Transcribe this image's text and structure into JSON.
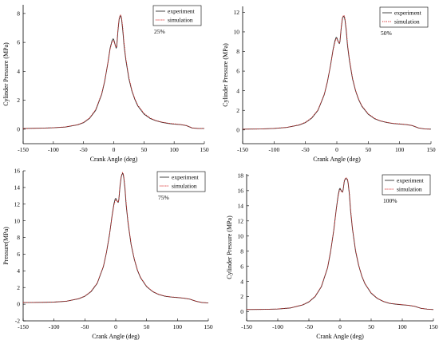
{
  "chart_data": [
    {
      "type": "line",
      "xlabel": "Crank Angle (deg)",
      "ylabel": "Cylinder Pressure (MPa)",
      "annotation": "25%",
      "xlim": [
        -150,
        150
      ],
      "ylim": [
        -1,
        8.6
      ],
      "xticks": [
        -150,
        -100,
        -50,
        0,
        50,
        100,
        150
      ],
      "yticks": [
        0,
        2,
        4,
        6,
        8
      ],
      "legend_position": "top-right",
      "series": [
        {
          "name": "experiment",
          "color": "#333333",
          "style": "solid",
          "x": [
            -150,
            -120,
            -100,
            -80,
            -60,
            -50,
            -40,
            -30,
            -20,
            -15,
            -10,
            -6,
            -3,
            -1,
            0,
            2,
            4,
            5,
            7,
            9,
            11,
            12,
            13,
            15,
            17,
            20,
            25,
            30,
            35,
            40,
            50,
            60,
            70,
            80,
            90,
            100,
            110,
            120,
            130,
            140,
            150
          ],
          "y": [
            0.05,
            0.07,
            0.1,
            0.15,
            0.3,
            0.45,
            0.75,
            1.3,
            2.4,
            3.3,
            4.5,
            5.6,
            6.1,
            6.25,
            6.2,
            5.9,
            5.6,
            5.7,
            6.8,
            7.6,
            7.85,
            7.8,
            7.6,
            6.8,
            5.8,
            4.8,
            3.5,
            2.65,
            2.05,
            1.6,
            1.05,
            0.75,
            0.58,
            0.47,
            0.4,
            0.35,
            0.32,
            0.25,
            0.08,
            0.05,
            0.05
          ]
        },
        {
          "name": "simulation",
          "color": "#d62020",
          "style": "dotted",
          "x": [
            -150,
            -120,
            -100,
            -80,
            -60,
            -50,
            -40,
            -30,
            -20,
            -15,
            -10,
            -6,
            -3,
            -1,
            0,
            2,
            4,
            5,
            7,
            9,
            11,
            12,
            13,
            15,
            17,
            20,
            25,
            30,
            35,
            40,
            50,
            60,
            70,
            80,
            90,
            100,
            110,
            120,
            130,
            140,
            150
          ],
          "y": [
            0.05,
            0.07,
            0.1,
            0.16,
            0.31,
            0.47,
            0.78,
            1.35,
            2.45,
            3.35,
            4.5,
            5.55,
            6.0,
            6.15,
            6.1,
            5.85,
            5.65,
            5.8,
            6.9,
            7.7,
            7.9,
            7.85,
            7.7,
            7.0,
            6.0,
            4.9,
            3.6,
            2.7,
            2.1,
            1.65,
            1.1,
            0.78,
            0.6,
            0.49,
            0.42,
            0.37,
            0.33,
            0.26,
            0.09,
            0.05,
            0.05
          ]
        }
      ]
    },
    {
      "type": "line",
      "xlabel": "Crank Angle (deg)",
      "ylabel": "Cylinder Pressure (MPa)",
      "annotation": "50%",
      "xlim": [
        -150,
        150
      ],
      "ylim": [
        -1.4,
        12.6
      ],
      "xticks": [
        -150,
        -100,
        -50,
        0,
        50,
        100,
        150
      ],
      "yticks": [
        0,
        2,
        4,
        6,
        8,
        10,
        12
      ],
      "legend_position": "top-right",
      "series": [
        {
          "name": "experiment",
          "color": "#333333",
          "style": "solid",
          "x": [
            -150,
            -120,
            -100,
            -80,
            -60,
            -50,
            -40,
            -30,
            -20,
            -15,
            -10,
            -6,
            -3,
            -1,
            0,
            2,
            4,
            5,
            7,
            9,
            11,
            12,
            13,
            15,
            17,
            20,
            25,
            30,
            35,
            40,
            50,
            60,
            70,
            80,
            90,
            100,
            110,
            120,
            130,
            140,
            150
          ],
          "y": [
            0.08,
            0.1,
            0.15,
            0.25,
            0.5,
            0.75,
            1.2,
            2.0,
            3.6,
            4.9,
            6.6,
            8.2,
            9.1,
            9.45,
            9.4,
            9.05,
            8.8,
            9.0,
            10.4,
            11.4,
            11.6,
            11.5,
            11.2,
            10.1,
            8.6,
            7.1,
            5.2,
            3.95,
            3.05,
            2.4,
            1.6,
            1.15,
            0.9,
            0.75,
            0.65,
            0.6,
            0.55,
            0.45,
            0.2,
            0.1,
            0.08
          ]
        },
        {
          "name": "simulation",
          "color": "#d62020",
          "style": "dotted",
          "x": [
            -150,
            -120,
            -100,
            -80,
            -60,
            -50,
            -40,
            -30,
            -20,
            -15,
            -10,
            -6,
            -3,
            -1,
            0,
            2,
            4,
            5,
            7,
            9,
            11,
            12,
            13,
            15,
            17,
            20,
            25,
            30,
            35,
            40,
            50,
            60,
            70,
            80,
            90,
            100,
            110,
            120,
            130,
            140,
            150
          ],
          "y": [
            0.08,
            0.1,
            0.16,
            0.26,
            0.52,
            0.78,
            1.25,
            2.05,
            3.65,
            4.95,
            6.6,
            8.1,
            8.95,
            9.3,
            9.3,
            9.0,
            8.85,
            9.1,
            10.5,
            11.5,
            11.7,
            11.6,
            11.35,
            10.3,
            8.8,
            7.25,
            5.3,
            4.0,
            3.1,
            2.45,
            1.65,
            1.18,
            0.92,
            0.77,
            0.67,
            0.62,
            0.56,
            0.46,
            0.21,
            0.1,
            0.08
          ]
        }
      ]
    },
    {
      "type": "line",
      "xlabel": "Crank Angle (deg)",
      "ylabel": "Pressure(MPa)",
      "annotation": "75%",
      "xlim": [
        -150,
        150
      ],
      "ylim": [
        -2,
        16
      ],
      "xticks": [
        -150,
        -100,
        -50,
        0,
        50,
        100,
        150
      ],
      "yticks": [
        -2,
        0,
        2,
        4,
        6,
        8,
        10,
        12,
        14,
        16
      ],
      "legend_position": "top-right",
      "series": [
        {
          "name": "experiment",
          "color": "#333333",
          "style": "solid",
          "x": [
            -150,
            -120,
            -100,
            -80,
            -60,
            -50,
            -40,
            -30,
            -20,
            -15,
            -10,
            -6,
            -3,
            -1,
            0,
            2,
            4,
            5,
            7,
            9,
            11,
            12,
            13,
            15,
            17,
            20,
            25,
            30,
            35,
            40,
            50,
            60,
            70,
            80,
            90,
            100,
            110,
            120,
            130,
            140,
            150
          ],
          "y": [
            0.2,
            0.22,
            0.25,
            0.35,
            0.65,
            0.95,
            1.5,
            2.5,
            4.5,
            6.2,
            8.4,
            10.6,
            12.0,
            12.6,
            12.7,
            12.4,
            12.2,
            12.5,
            14.2,
            15.3,
            15.7,
            15.6,
            15.2,
            13.8,
            11.8,
            9.7,
            7.1,
            5.4,
            4.1,
            3.2,
            2.1,
            1.5,
            1.15,
            0.95,
            0.85,
            0.8,
            0.72,
            0.6,
            0.35,
            0.2,
            0.15
          ]
        },
        {
          "name": "simulation",
          "color": "#d62020",
          "style": "dotted",
          "x": [
            -150,
            -120,
            -100,
            -80,
            -60,
            -50,
            -40,
            -30,
            -20,
            -15,
            -10,
            -6,
            -3,
            -1,
            0,
            2,
            4,
            5,
            7,
            9,
            11,
            12,
            13,
            15,
            17,
            20,
            25,
            30,
            35,
            40,
            50,
            60,
            70,
            80,
            90,
            100,
            110,
            120,
            130,
            140,
            150
          ],
          "y": [
            0.2,
            0.22,
            0.26,
            0.36,
            0.67,
            0.98,
            1.55,
            2.55,
            4.55,
            6.25,
            8.4,
            10.5,
            11.85,
            12.4,
            12.55,
            12.35,
            12.25,
            12.6,
            14.3,
            15.4,
            15.8,
            15.7,
            15.35,
            14.0,
            12.0,
            9.85,
            7.2,
            5.45,
            4.15,
            3.25,
            2.15,
            1.53,
            1.17,
            0.97,
            0.87,
            0.82,
            0.73,
            0.61,
            0.36,
            0.2,
            0.15
          ]
        }
      ]
    },
    {
      "type": "line",
      "xlabel": "Crank Angle (deg)",
      "ylabel": "Cylinder Pressure (MPa)",
      "annotation": "100%",
      "xlim": [
        -150,
        150
      ],
      "ylim": [
        -1.2,
        18.2
      ],
      "xticks": [
        -150,
        -100,
        -50,
        0,
        50,
        100,
        150
      ],
      "yticks": [
        0,
        2,
        4,
        6,
        8,
        10,
        12,
        14,
        16,
        18
      ],
      "legend_position": "top-right",
      "series": [
        {
          "name": "experiment",
          "color": "#333333",
          "style": "solid",
          "x": [
            -150,
            -120,
            -100,
            -80,
            -60,
            -50,
            -40,
            -30,
            -20,
            -15,
            -10,
            -6,
            -3,
            -1,
            0,
            2,
            4,
            5,
            7,
            9,
            11,
            12,
            13,
            15,
            17,
            20,
            25,
            30,
            35,
            40,
            50,
            60,
            70,
            80,
            90,
            100,
            110,
            120,
            130,
            140,
            150
          ],
          "y": [
            0.3,
            0.32,
            0.36,
            0.5,
            0.9,
            1.3,
            2.0,
            3.3,
            5.8,
            8.0,
            10.8,
            13.6,
            15.4,
            16.2,
            16.3,
            16.0,
            15.8,
            16.1,
            17.3,
            17.6,
            17.55,
            17.4,
            17.0,
            15.5,
            13.3,
            10.9,
            8.0,
            6.1,
            4.7,
            3.7,
            2.45,
            1.75,
            1.35,
            1.1,
            1.0,
            0.92,
            0.85,
            0.72,
            0.45,
            0.35,
            0.3
          ]
        },
        {
          "name": "simulation",
          "color": "#d62020",
          "style": "dotted",
          "x": [
            -150,
            -120,
            -100,
            -80,
            -60,
            -50,
            -40,
            -30,
            -20,
            -15,
            -10,
            -6,
            -3,
            -1,
            0,
            2,
            4,
            5,
            7,
            9,
            11,
            12,
            13,
            15,
            17,
            20,
            25,
            30,
            35,
            40,
            50,
            60,
            70,
            80,
            90,
            100,
            110,
            120,
            130,
            140,
            150
          ],
          "y": [
            0.3,
            0.32,
            0.37,
            0.51,
            0.92,
            1.33,
            2.05,
            3.35,
            5.85,
            8.05,
            10.8,
            13.5,
            15.25,
            16.0,
            16.15,
            15.9,
            15.8,
            16.2,
            17.4,
            17.7,
            17.65,
            17.5,
            17.15,
            15.7,
            13.5,
            11.05,
            8.1,
            6.15,
            4.75,
            3.75,
            2.5,
            1.78,
            1.37,
            1.12,
            1.02,
            0.94,
            0.86,
            0.73,
            0.46,
            0.35,
            0.3
          ]
        }
      ]
    }
  ]
}
